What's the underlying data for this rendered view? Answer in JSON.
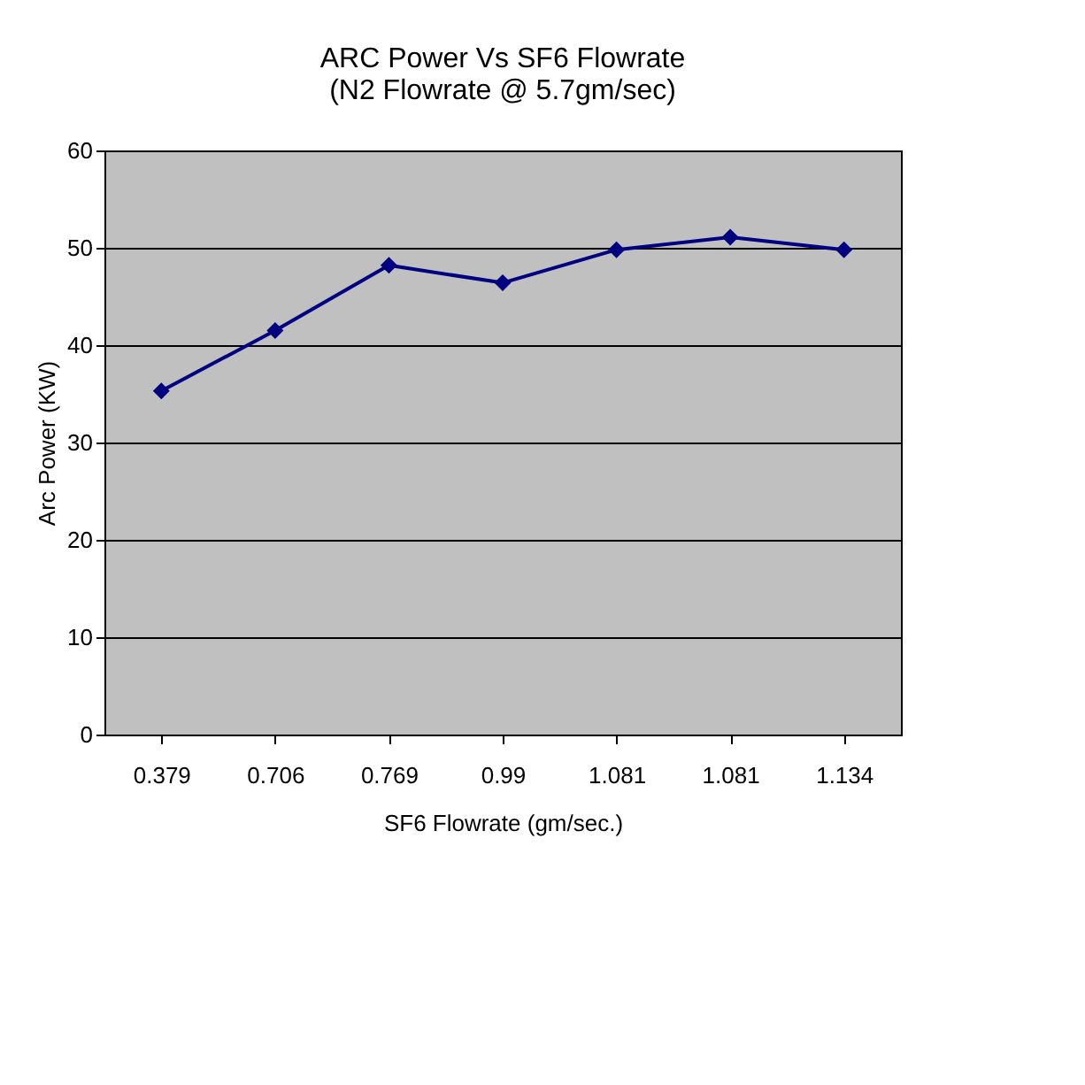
{
  "chart_data": {
    "type": "line",
    "title": [
      "ARC Power Vs SF6 Flowrate",
      "(N2 Flowrate @ 5.7gm/sec)"
    ],
    "xlabel": "SF6 Flowrate (gm/sec.)",
    "ylabel": "Arc Power (KW)",
    "categories": [
      "0.379",
      "0.706",
      "0.769",
      "0.99",
      "1.081",
      "1.081",
      "1.134"
    ],
    "series": [
      {
        "color": "#000080",
        "values": [
          35.3,
          41.5,
          48.2,
          46.4,
          49.8,
          51.1,
          49.8
        ]
      }
    ],
    "ylim": [
      0,
      60
    ],
    "yticks": [
      0,
      10,
      20,
      30,
      40,
      50,
      60
    ],
    "grid": "y",
    "marker": "diamond",
    "line_style": "solid"
  }
}
